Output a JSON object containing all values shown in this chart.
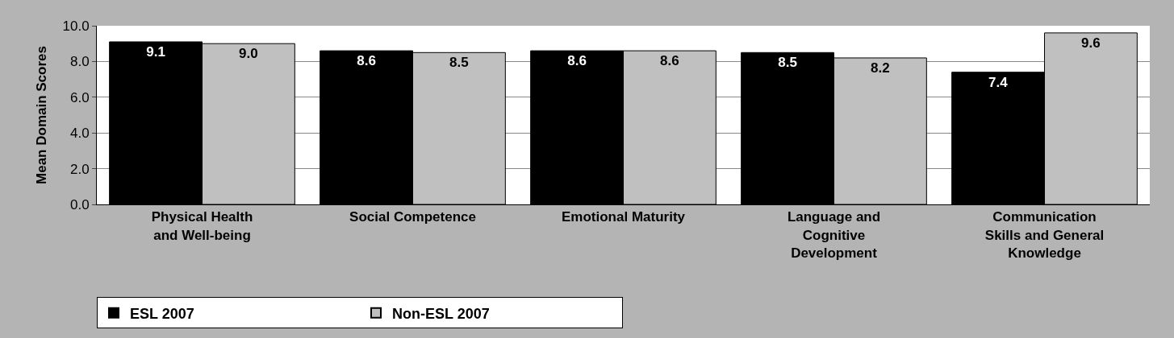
{
  "chart_data": {
    "type": "bar",
    "ylabel": "Mean Domain Scores",
    "categories": [
      "Physical Health\nand Well-being",
      "Social Competence",
      "Emotional Maturity",
      "Language and\nCognitive\nDevelopment",
      "Communication\nSkills and General\nKnowledge"
    ],
    "series": [
      {
        "name": "ESL 2007",
        "color": "#000000",
        "values": [
          9.1,
          8.6,
          8.6,
          8.5,
          7.4
        ],
        "value_labels": [
          "9.1",
          "8.6",
          "8.6",
          "8.5",
          "7.4"
        ]
      },
      {
        "name": "Non-ESL 2007",
        "color": "#c0c0c0",
        "values": [
          9.0,
          8.5,
          8.6,
          8.2,
          9.6
        ],
        "value_labels": [
          "9.0",
          "8.5",
          "8.6",
          "8.2",
          "9.6"
        ]
      }
    ],
    "ylim": [
      0,
      10
    ],
    "yticks": [
      {
        "value": 0,
        "label": "0.0"
      },
      {
        "value": 2,
        "label": "2.0"
      },
      {
        "value": 4,
        "label": "4.0"
      },
      {
        "value": 6,
        "label": "6.0"
      },
      {
        "value": 8,
        "label": "8.0"
      },
      {
        "value": 10,
        "label": "10.0"
      }
    ],
    "grid": "y",
    "legend": "bottom left"
  }
}
